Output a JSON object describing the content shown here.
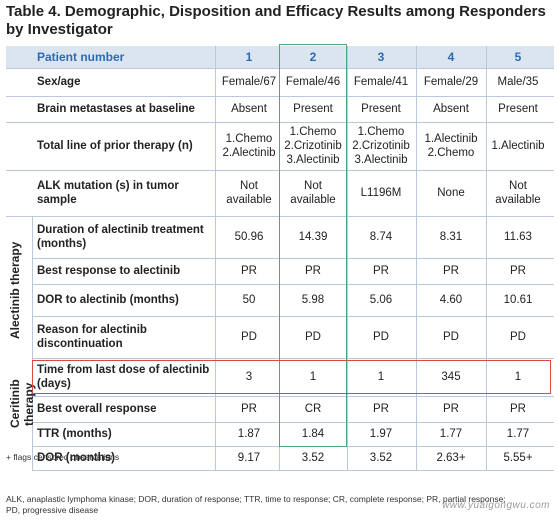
{
  "title": "Table 4. Demographic, Disposition and Efficacy Results among Responders by Investigator",
  "header": {
    "label": "Patient number",
    "patients": [
      "1",
      "2",
      "3",
      "4",
      "5"
    ]
  },
  "sections": {
    "alectinib": "Alectinib therapy",
    "ceritinib": "Ceritinib therapy"
  },
  "rows": [
    {
      "label": "Sex/age",
      "values": [
        "Female/67",
        "Female/46",
        "Female/41",
        "Female/29",
        "Male/35"
      ]
    },
    {
      "label": "Brain metastases at baseline",
      "values": [
        "Absent",
        "Present",
        "Present",
        "Absent",
        "Present"
      ]
    },
    {
      "label": "Total line of prior therapy (n)",
      "values": [
        "1.Chemo\n2.Alectinib",
        "1.Chemo\n2.Crizotinib\n3.Alectinib",
        "1.Chemo\n2.Crizotinib\n3.Alectinib",
        "1.Alectinib\n2.Chemo",
        "1.Alectinib"
      ]
    },
    {
      "label": "ALK mutation (s) in tumor sample",
      "values": [
        "Not\navailable",
        "Not available",
        "L1196M",
        "None",
        "Not available"
      ]
    },
    {
      "label": "Duration of alectinib treatment\n(months)",
      "values": [
        "50.96",
        "14.39",
        "8.74",
        "8.31",
        "11.63"
      ]
    },
    {
      "label": "Best response to alectinib",
      "values": [
        "PR",
        "PR",
        "PR",
        "PR",
        "PR"
      ]
    },
    {
      "label": "DOR to alectinib (months)",
      "values": [
        "50",
        "5.98",
        "5.06",
        "4.60",
        "10.61"
      ]
    },
    {
      "label": "Reason for alectinib\ndiscontinuation",
      "values": [
        "PD",
        "PD",
        "PD",
        "PD",
        "PD"
      ]
    },
    {
      "label": "Time from last dose of alectinib\n(days)",
      "values": [
        "3",
        "1",
        "1",
        "345",
        "1"
      ]
    },
    {
      "label": "Best overall response",
      "values": [
        "PR",
        "CR",
        "PR",
        "PR",
        "PR"
      ]
    },
    {
      "label": "TTR (months)",
      "values": [
        "1.87",
        "1.84",
        "1.97",
        "1.77",
        "1.77"
      ]
    },
    {
      "label": "DOR (months)",
      "values": [
        "9.17",
        "3.52",
        "3.52",
        "2.63+",
        "5.55+"
      ]
    }
  ],
  "footnotes": {
    "flag": "+ flags censored observations",
    "abbrev": "ALK, anaplastic lymphoma kinase; DOR, duration of response; TTR, time to response; CR, complete response; PR, partial response;\nPD, progressive disease"
  },
  "watermark": "www.yuaigongwu.com",
  "colors": {
    "header_band": "#dbe5f0",
    "header_text": "#2d6bb4",
    "highlight_column": "#4aa87a",
    "highlight_row": "#d94a3a"
  }
}
